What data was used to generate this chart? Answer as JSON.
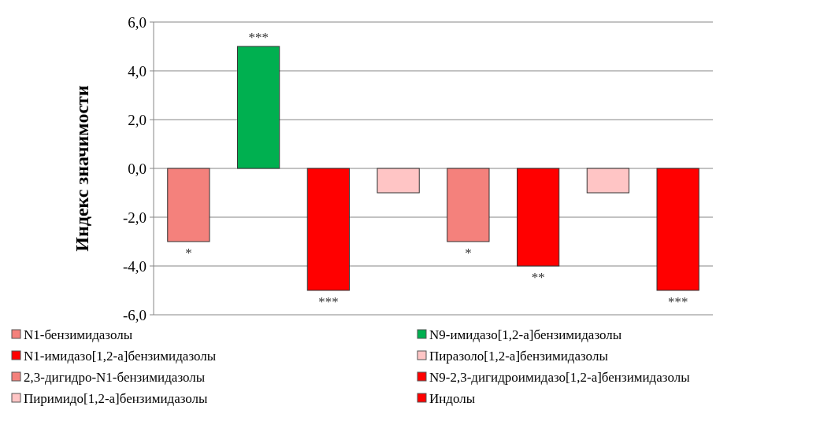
{
  "chart_data": {
    "type": "bar",
    "ylabel": "Индекс значимости",
    "categories": [
      null,
      null,
      null,
      null,
      null,
      null,
      null,
      null
    ],
    "series": [
      {
        "name": "N1-бензимидазолы",
        "color": "#f4817c",
        "values": [
          -3,
          null,
          null,
          null,
          null,
          null,
          null,
          null
        ]
      },
      {
        "name": "N9-имидазо[1,2-a]бензимидазолы",
        "color": "#00b050",
        "values": [
          null,
          5,
          null,
          null,
          null,
          null,
          null,
          null
        ]
      },
      {
        "name": "N1-имидазо[1,2-a]бензимидазолы",
        "color": "#ff0000",
        "values": [
          null,
          null,
          -5,
          null,
          null,
          null,
          null,
          null
        ]
      },
      {
        "name": "Пиразоло[1,2-a]бензимидазолы",
        "color": "#ffc5c5",
        "values": [
          null,
          null,
          null,
          -1,
          null,
          null,
          null,
          null
        ]
      },
      {
        "name": "2,3-дигидро-N1-бензимидазолы",
        "color": "#f4817c",
        "values": [
          null,
          null,
          null,
          null,
          -3,
          null,
          null,
          null
        ]
      },
      {
        "name": "N9-2,3-дигидроимидазо[1,2-a]бензимидазолы",
        "color": "#ff0000",
        "values": [
          null,
          null,
          null,
          null,
          null,
          -4,
          null,
          null
        ]
      },
      {
        "name": "Пиримидо[1,2-a]бензимидазолы",
        "color": "#ffc5c5",
        "values": [
          null,
          null,
          null,
          null,
          null,
          null,
          -1,
          null
        ]
      },
      {
        "name": "Индолы",
        "color": "#ff0000",
        "values": [
          null,
          null,
          null,
          null,
          null,
          null,
          null,
          -5
        ]
      }
    ],
    "annotations": [
      {
        "text": "*",
        "y": -3
      },
      {
        "text": "***",
        "y": 5
      },
      {
        "text": "***",
        "y": -5
      },
      {
        "text": "*",
        "y": -3
      },
      {
        "text": "**",
        "y": -4
      },
      {
        "text": "***",
        "y": -5
      }
    ],
    "ylim": [
      -6,
      6
    ],
    "yticks": [
      {
        "value": -6,
        "label": "-6,0"
      },
      {
        "value": -4,
        "label": "-4,0"
      },
      {
        "value": -2,
        "label": "-2,0"
      },
      {
        "value": 0,
        "label": "0,0"
      },
      {
        "value": 2,
        "label": "2,0"
      },
      {
        "value": 4,
        "label": "4,0"
      },
      {
        "value": 6,
        "label": "6,0"
      }
    ],
    "grid": "y",
    "legend": "bottom"
  }
}
